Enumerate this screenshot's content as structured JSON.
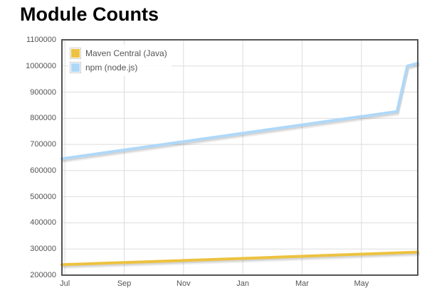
{
  "page": {
    "title": "Module Counts"
  },
  "chart_data": {
    "type": "line",
    "title": "Module Counts",
    "grid": true,
    "legend_position": "top-left",
    "colors": {
      "grid_line": "#dddddd",
      "border": "#545454",
      "axis_text": "#545454"
    },
    "x_axis": {
      "unit": "months (Jul through following Jun)",
      "range_months": [
        0,
        12
      ],
      "tick_positions": [
        0.1,
        2.1,
        4.1,
        6.1,
        8.1,
        10.1
      ],
      "tick_labels": [
        "Jul",
        "Sep",
        "Nov",
        "Jan",
        "Mar",
        "May"
      ]
    },
    "y_axis": {
      "range": [
        200000,
        1100000
      ],
      "ticks": [
        200000,
        300000,
        400000,
        500000,
        600000,
        700000,
        800000,
        900000,
        1000000,
        1100000
      ],
      "tick_labels": [
        "200000",
        "300000",
        "400000",
        "500000",
        "600000",
        "700000",
        "800000",
        "900000",
        "1000000",
        "1100000"
      ]
    },
    "series": [
      {
        "name": "Maven Central (Java)",
        "color": "#edc240",
        "points": [
          [
            0,
            240000
          ],
          [
            6.1,
            264000
          ],
          [
            12,
            288000
          ]
        ]
      },
      {
        "name": "npm (node.js)",
        "color": "#afd8f8",
        "points": [
          [
            0,
            645000
          ],
          [
            11.3,
            826000
          ],
          [
            11.65,
            1000000
          ],
          [
            12,
            1010000
          ]
        ]
      }
    ]
  }
}
